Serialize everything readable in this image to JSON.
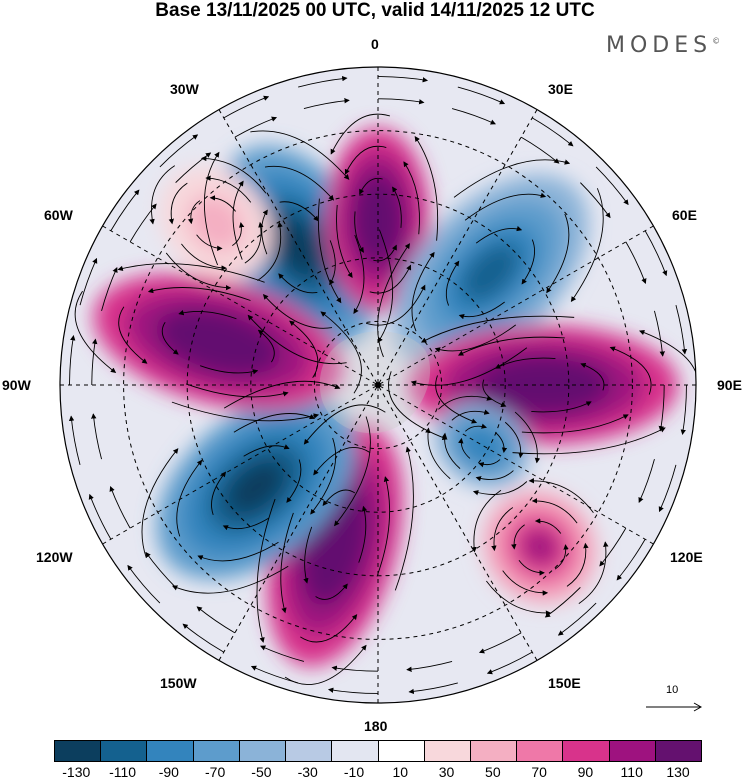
{
  "title": "Base 13/11/2025 00 UTC, valid 14/11/2025 12 UTC",
  "brand": "MODES",
  "brand_mark": "©",
  "longitude_labels": {
    "lon_0": "0",
    "lon_30e": "30E",
    "lon_60e": "60E",
    "lon_90e": "90E",
    "lon_120e": "120E",
    "lon_150e": "150E",
    "lon_180": "180",
    "lon_150w": "150W",
    "lon_120w": "120W",
    "lon_90w": "90W",
    "lon_60w": "60W",
    "lon_30w": "30W"
  },
  "reference_vector": {
    "label": "10"
  },
  "colorbar": {
    "colors": [
      "#0c3e5e",
      "#14618f",
      "#3384bd",
      "#5d9ccc",
      "#8bb3d8",
      "#b8cae4",
      "#e3e6f1",
      "#ffffff",
      "#f8d8dc",
      "#f4afc2",
      "#ef78a8",
      "#d8338b",
      "#9e127f",
      "#64116f"
    ],
    "tick_labels": [
      "-130",
      "-110",
      "-90",
      "-70",
      "-50",
      "-30",
      "-10",
      "10",
      "30",
      "50",
      "70",
      "90",
      "110",
      "130"
    ]
  },
  "anomaly_centers": [
    {
      "sign": "negative",
      "value": -140,
      "lon_label": "30W"
    },
    {
      "sign": "positive",
      "value": 140,
      "lon_label": "0"
    },
    {
      "sign": "negative",
      "value": -130,
      "lon_label": "45E"
    },
    {
      "sign": "positive",
      "value": 140,
      "lon_label": "90E"
    },
    {
      "sign": "negative",
      "value": -110,
      "lon_label": "120E"
    },
    {
      "sign": "positive",
      "value": 90,
      "lon_label": "135E"
    },
    {
      "sign": "positive",
      "value": 140,
      "lon_label": "165W"
    },
    {
      "sign": "negative",
      "value": -140,
      "lon_label": "130W"
    },
    {
      "sign": "positive",
      "value": 140,
      "lon_label": "75W"
    },
    {
      "sign": "positive",
      "value": 40,
      "lon_label": "45W"
    }
  ]
}
